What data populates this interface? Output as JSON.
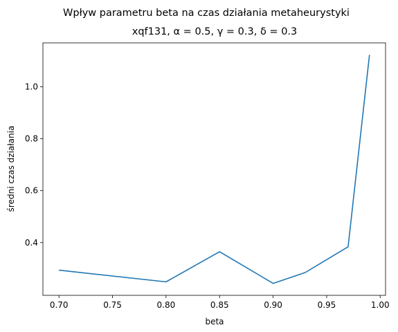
{
  "chart_data": {
    "type": "line",
    "suptitle": "Wpływ parametru beta na czas działania metaheurystyki",
    "title": "xqf131, α = 0.5, γ = 0.3, δ = 0.3",
    "xlabel": "beta",
    "ylabel": "średni czas działania",
    "xlim": [
      0.685,
      1.005
    ],
    "ylim": [
      0.197,
      1.169
    ],
    "xticks": [
      0.7,
      0.75,
      0.8,
      0.85,
      0.9,
      0.95,
      1.0
    ],
    "xtick_labels": [
      "0.70",
      "0.75",
      "0.80",
      "0.85",
      "0.90",
      "0.95",
      "1.00"
    ],
    "yticks": [
      0.4,
      0.6,
      0.8,
      1.0
    ],
    "ytick_labels": [
      "0.4",
      "0.6",
      "0.8",
      "1.0"
    ],
    "grid": false,
    "series": [
      {
        "color": "#1f77b4",
        "x": [
          0.7,
          0.8,
          0.85,
          0.9,
          0.93,
          0.97,
          0.99
        ],
        "y": [
          0.294,
          0.249,
          0.365,
          0.243,
          0.285,
          0.384,
          1.123
        ]
      }
    ]
  }
}
